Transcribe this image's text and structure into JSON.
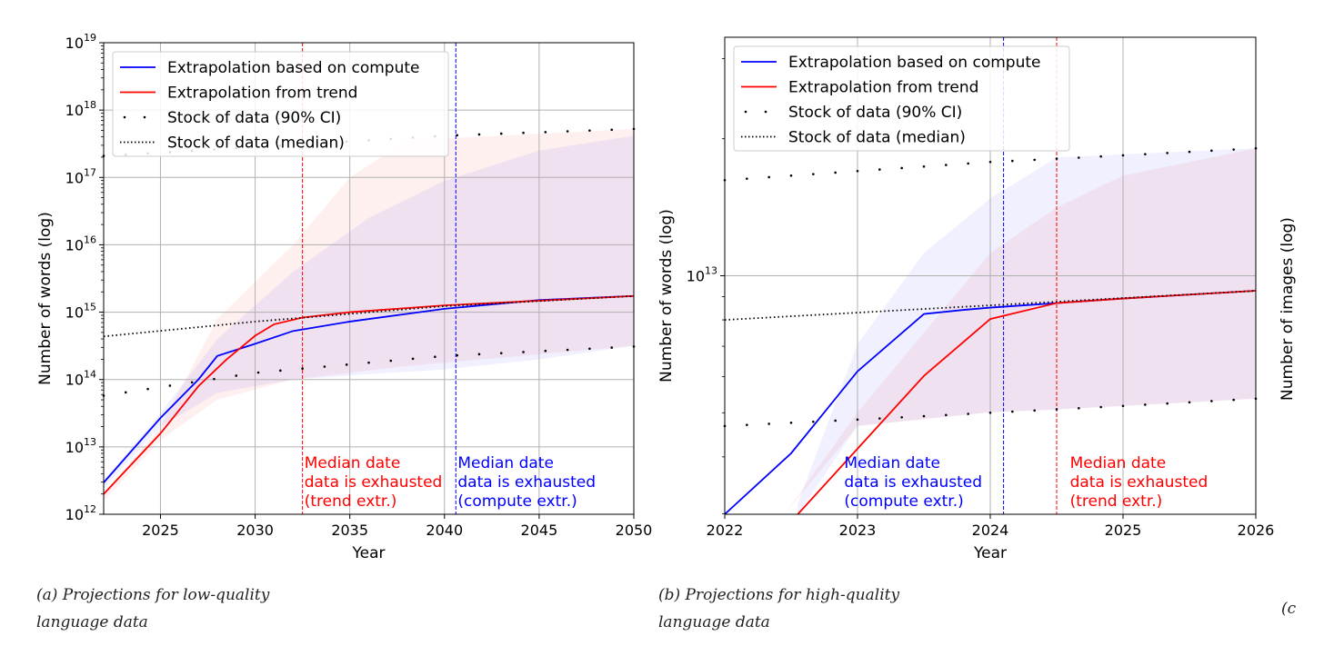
{
  "chart_data": [
    {
      "type": "line",
      "yscale": "log",
      "note": "y values given as log10",
      "xlabel": "Year",
      "ylabel": "Number of words (log)",
      "xlim": [
        2022,
        2050
      ],
      "ylim_log10": [
        12,
        19
      ],
      "xticks": [
        "2025",
        "2030",
        "2035",
        "2040",
        "2045",
        "2050"
      ],
      "xtick_values": [
        2025,
        2030,
        2035,
        2040,
        2045,
        2050
      ],
      "yticks": [
        12,
        13,
        14,
        15,
        16,
        17,
        18,
        19
      ],
      "legend": [
        "Extrapolation based on compute",
        "Extrapolation from trend",
        "Stock of data (90% CI)",
        "Stock of data (median)"
      ],
      "legend_position": "top-left",
      "grid": true,
      "series": [
        {
          "name": "compute",
          "color": "#0000ff",
          "x": [
            2022,
            2025,
            2027,
            2028,
            2030,
            2032,
            2035,
            2040,
            2045,
            2050
          ],
          "y": [
            12.47,
            13.43,
            14.0,
            14.35,
            14.53,
            14.72,
            14.86,
            15.05,
            15.18,
            15.24
          ]
        },
        {
          "name": "trend",
          "color": "#ff0000",
          "x": [
            2022,
            2025,
            2027,
            2028.5,
            2030,
            2031,
            2032.5,
            2035,
            2040,
            2050
          ],
          "y": [
            12.3,
            13.2,
            13.9,
            14.3,
            14.65,
            14.82,
            14.92,
            15.0,
            15.1,
            15.24
          ]
        },
        {
          "name": "median",
          "x": [
            2022,
            2030,
            2040,
            2050
          ],
          "y": [
            14.64,
            14.86,
            15.09,
            15.24
          ]
        },
        {
          "name": "ci_upper",
          "x": [
            2022,
            2030,
            2040,
            2050
          ],
          "y": [
            17.32,
            17.45,
            17.62,
            17.72
          ]
        },
        {
          "name": "ci_lower",
          "x": [
            2022,
            2030,
            2040,
            2050
          ],
          "y": [
            13.76,
            14.1,
            14.35,
            14.49
          ]
        }
      ],
      "bands": [
        {
          "name": "trend-band",
          "color": "#ff0000",
          "x": [
            2022,
            2025,
            2028,
            2032,
            2035,
            2038,
            2050
          ],
          "upper": [
            12.3,
            13.3,
            14.9,
            16.0,
            17.0,
            17.55,
            17.72
          ],
          "lower": [
            12.2,
            13.1,
            13.7,
            14.0,
            14.1,
            14.2,
            14.5
          ]
        },
        {
          "name": "compute-band",
          "color": "#0000ff",
          "x": [
            2022,
            2025,
            2028,
            2032,
            2036,
            2040,
            2045,
            2050
          ],
          "upper": [
            12.5,
            13.5,
            14.6,
            15.6,
            16.4,
            16.95,
            17.4,
            17.62
          ],
          "lower": [
            12.4,
            13.3,
            13.8,
            14.0,
            14.08,
            14.15,
            14.3,
            14.5
          ]
        }
      ],
      "vlines": [
        {
          "x": 2032.5,
          "color": "#ff0000"
        },
        {
          "x": 2040.6,
          "color": "#0000ff"
        }
      ],
      "annotations": [
        {
          "x": 2032.6,
          "color": "#ff0000",
          "lines": [
            "Median date",
            "data is exhausted",
            "(trend extr.)"
          ]
        },
        {
          "x": 2040.7,
          "color": "#0000ff",
          "lines": [
            "Median date",
            "data is exhausted",
            "(compute extr.)"
          ]
        }
      ],
      "caption": [
        "(a) Projections for low-quality",
        "language data"
      ]
    },
    {
      "type": "line",
      "yscale": "log",
      "note": "y values given as log10",
      "xlabel": "Year",
      "ylabel": "Number of words (log)",
      "ylabel_right": "Number of images (log)",
      "xlim": [
        2022,
        2026
      ],
      "ylim_log10": [
        12.476,
        13.524
      ],
      "xticks": [
        "2022",
        "2023",
        "2024",
        "2025",
        "2026"
      ],
      "xtick_values": [
        2022,
        2023,
        2024,
        2025,
        2026
      ],
      "yticks": [
        13
      ],
      "legend": [
        "Extrapolation based on compute",
        "Extrapolation from trend",
        "Stock of data (90% CI)",
        "Stock of data (median)"
      ],
      "legend_position": "top-left",
      "grid": true,
      "series": [
        {
          "name": "compute",
          "color": "#0000ff",
          "x": [
            2022,
            2022.5,
            2023,
            2023.5,
            2023.8,
            2024,
            2024.5,
            2025,
            2026
          ],
          "y": [
            12.476,
            12.61,
            12.79,
            12.916,
            12.925,
            12.93,
            12.94,
            12.95,
            12.967
          ]
        },
        {
          "name": "trend",
          "color": "#ff0000",
          "x": [
            2022.55,
            2023,
            2023.5,
            2024,
            2024.5,
            2025,
            2026
          ],
          "y": [
            12.476,
            12.62,
            12.78,
            12.905,
            12.94,
            12.95,
            12.967
          ]
        },
        {
          "name": "median",
          "x": [
            2022,
            2024,
            2026
          ],
          "y": [
            12.903,
            12.935,
            12.967
          ]
        },
        {
          "name": "ci_upper",
          "x": [
            2022,
            2023,
            2024,
            2024.7,
            2026
          ],
          "y": [
            13.21,
            13.23,
            13.25,
            13.26,
            13.28
          ]
        },
        {
          "name": "ci_lower",
          "x": [
            2022,
            2023,
            2024,
            2025,
            2026
          ],
          "y": [
            12.67,
            12.684,
            12.699,
            12.714,
            12.73
          ]
        }
      ],
      "bands": [
        {
          "name": "compute-band",
          "color": "#0000ff",
          "x": [
            2022.55,
            2023,
            2023.5,
            2024,
            2024.5,
            2026
          ],
          "upper": [
            12.5,
            12.85,
            13.05,
            13.17,
            13.26,
            13.28
          ],
          "lower": [
            12.476,
            12.67,
            12.685,
            12.7,
            12.706,
            12.73
          ]
        },
        {
          "name": "trend-band",
          "color": "#ff0000",
          "x": [
            2022.45,
            2023,
            2024,
            2024.5,
            2025,
            2026
          ],
          "upper": [
            12.476,
            12.7,
            13.05,
            13.15,
            13.22,
            13.28
          ],
          "lower": [
            12.476,
            12.67,
            12.7,
            12.706,
            12.714,
            12.73
          ]
        }
      ],
      "vlines": [
        {
          "x": 2024.1,
          "color": "#0000ff"
        },
        {
          "x": 2024.5,
          "color": "#ff0000"
        }
      ],
      "annotations": [
        {
          "x": 2022.9,
          "color": "#0000ff",
          "lines": [
            "Median date",
            "data is exhausted",
            "(compute extr.)"
          ]
        },
        {
          "x": 2024.6,
          "color": "#ff0000",
          "lines": [
            "Median date",
            "data is exhausted",
            "(trend extr.)"
          ]
        }
      ],
      "caption": [
        "(b) Projections for high-quality",
        "language data"
      ]
    }
  ],
  "caption_c": "(c"
}
